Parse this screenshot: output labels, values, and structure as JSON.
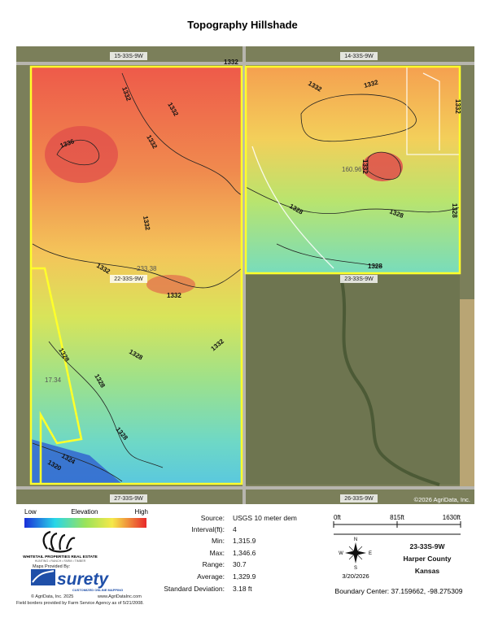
{
  "header": {
    "title": "Topography Hillshade"
  },
  "map": {
    "section_labels": [
      "15-33S-9W",
      "14-33S-9W",
      "22-33S-9W",
      "23-33S-9W",
      "27-33S-9W",
      "26-33S-9W"
    ],
    "contour_labels": [
      "1332",
      "1332",
      "1332",
      "1332",
      "1336",
      "1332",
      "1332",
      "1332",
      "1332",
      "1332",
      "1332",
      "1328",
      "1328",
      "1328",
      "1328",
      "1328",
      "1328",
      "1328",
      "1328",
      "1324",
      "1320",
      "1332",
      "1332"
    ],
    "acreage_labels": [
      "160.96",
      "233.38",
      "17.34"
    ],
    "copyright": "©2026 AgriData, Inc."
  },
  "legend": {
    "low": "Low",
    "title": "Elevation",
    "high": "High"
  },
  "stats": [
    {
      "label": "Source:",
      "value": "USGS 10 meter dem"
    },
    {
      "label": "Interval(ft):",
      "value": "4"
    },
    {
      "label": "Min:",
      "value": "1,315.9"
    },
    {
      "label": "Max:",
      "value": "1,346.6"
    },
    {
      "label": "Range:",
      "value": "30.7"
    },
    {
      "label": "Average:",
      "value": "1,329.9"
    },
    {
      "label": "Standard Deviation:",
      "value": "3.18 ft"
    }
  ],
  "scale": [
    "0ft",
    "815ft",
    "1630ft"
  ],
  "compass": {
    "n": "N",
    "s": "S",
    "e": "E",
    "w": "W"
  },
  "location": {
    "section": "23-33S-9W",
    "county": "Harper County",
    "state": "Kansas",
    "date": "3/20/2026",
    "boundary_center": "Boundary Center: 37.159662, -98.275309"
  },
  "branding": {
    "company": "WHITETAIL PROPERTIES REAL ESTATE",
    "tagline": "HUNTING • RANCH • FARM • TIMBER",
    "provided_by": "Maps Provided By:",
    "logo": "surety",
    "logo_sub": "CUSTOMIZED ONLINE MAPPING",
    "copyright": "© AgriData, Inc. 2025",
    "website": "www.AgriDataInc.com",
    "footnote": "Field borders provided by Farm Service Agency as of 5/21/2008."
  }
}
